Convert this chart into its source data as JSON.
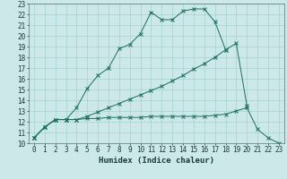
{
  "xlabel": "Humidex (Indice chaleur)",
  "background_color": "#cce8e8",
  "line_color": "#1a6e60",
  "grid_color": "#99cccc",
  "xlim": [
    -0.5,
    23.5
  ],
  "ylim": [
    10,
    23
  ],
  "xticks": [
    0,
    1,
    2,
    3,
    4,
    5,
    6,
    7,
    8,
    9,
    10,
    11,
    12,
    13,
    14,
    15,
    16,
    17,
    18,
    19,
    20,
    21,
    22,
    23
  ],
  "yticks": [
    10,
    11,
    12,
    13,
    14,
    15,
    16,
    17,
    18,
    19,
    20,
    21,
    22,
    23
  ],
  "line1_x": [
    0,
    1,
    2,
    3,
    4,
    5,
    6,
    7,
    8,
    9,
    10,
    11,
    12,
    13,
    14,
    15,
    16,
    17,
    18
  ],
  "line1_y": [
    10.5,
    11.5,
    12.2,
    12.2,
    13.3,
    15.1,
    16.3,
    17.0,
    18.8,
    19.2,
    20.2,
    22.2,
    21.5,
    21.5,
    22.3,
    22.5,
    22.5,
    21.3,
    18.7
  ],
  "line2_x": [
    0,
    1,
    2,
    3,
    4,
    5,
    6,
    7,
    8,
    9,
    10,
    11,
    12,
    13,
    14,
    15,
    16,
    17,
    18,
    19,
    20
  ],
  "line2_y": [
    10.5,
    11.5,
    12.2,
    12.2,
    12.2,
    12.5,
    12.9,
    13.3,
    13.7,
    14.1,
    14.5,
    14.9,
    15.3,
    15.8,
    16.3,
    16.9,
    17.4,
    18.0,
    18.7,
    19.3,
    13.5
  ],
  "line3_x": [
    0,
    1,
    2,
    3,
    4,
    5,
    6,
    7,
    8,
    9,
    10,
    11,
    12,
    13,
    14,
    15,
    16,
    17,
    18,
    19,
    20,
    21,
    22,
    23
  ],
  "line3_y": [
    10.5,
    11.5,
    12.2,
    12.2,
    12.2,
    12.3,
    12.3,
    12.4,
    12.4,
    12.4,
    12.4,
    12.5,
    12.5,
    12.5,
    12.5,
    12.5,
    12.5,
    12.6,
    12.7,
    13.0,
    13.3,
    11.3,
    10.5,
    10.0
  ],
  "tick_fontsize": 5.5,
  "label_fontsize": 6.5
}
